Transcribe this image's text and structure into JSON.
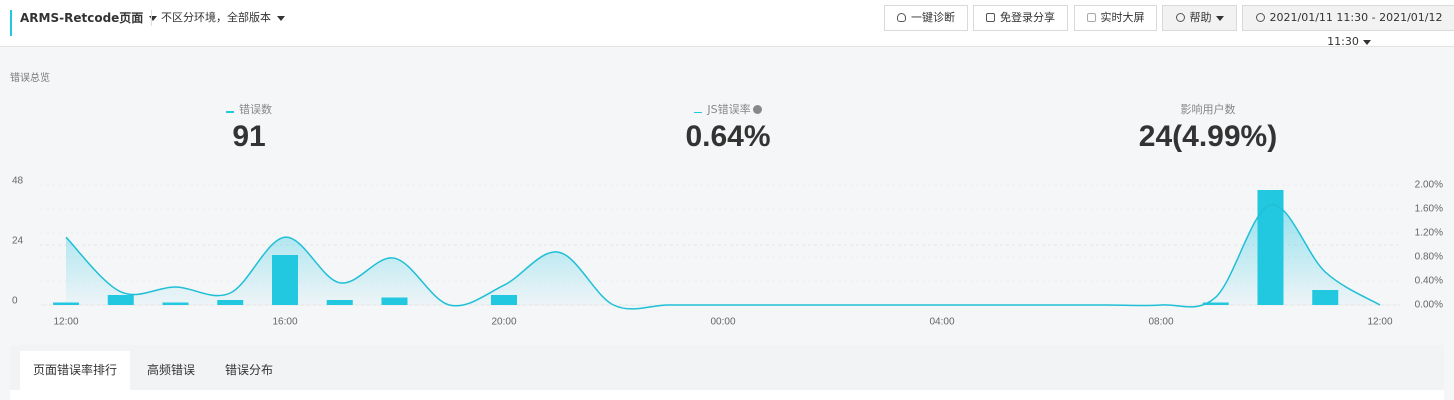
{
  "header": {
    "title": "ARMS-Retcode页面",
    "filter": "不区分环境，全部版本",
    "buttons": [
      "一键诊断",
      "免登录分享",
      "实时大屏",
      "帮助"
    ],
    "time_range": "2021/01/11 11:30 - 2021/01/12 11:30"
  },
  "overview": {
    "title": "错误总览",
    "stats": [
      {
        "label": "错误数",
        "value": "91"
      },
      {
        "label": "JS错误率",
        "value": "0.64%"
      },
      {
        "label": "影响用户数",
        "value": "24(4.99%)"
      }
    ]
  },
  "chart_data": {
    "type": "bar",
    "categories": [
      "12:00",
      null,
      null,
      null,
      "16:00",
      null,
      null,
      null,
      "20:00",
      null,
      null,
      null,
      "00:00",
      null,
      null,
      null,
      "04:00",
      null,
      null,
      null,
      "08:00",
      null,
      null,
      null,
      "12:00"
    ],
    "series": [
      {
        "type": "bar",
        "color": "#22c7e0",
        "values": [
          1,
          4,
          1,
          2,
          20,
          2,
          3,
          0,
          4,
          0,
          0,
          0,
          0,
          0,
          0,
          0,
          0,
          0,
          0,
          0,
          0,
          1,
          46,
          6,
          0
        ]
      },
      {
        "type": "line",
        "axis": "y2",
        "color": "#1fbfd6",
        "values": [
          1.13,
          0.22,
          0.3,
          0.2,
          1.13,
          0.37,
          0.78,
          0,
          0.33,
          0.88,
          0,
          0,
          0,
          0,
          0,
          0,
          0,
          0,
          0,
          0,
          0,
          0.13,
          1.67,
          0.55,
          0
        ]
      }
    ],
    "ylim": [
      0,
      48
    ],
    "yticks": [
      0,
      24,
      48
    ],
    "y2lim": [
      0,
      2
    ],
    "y2ticks": [
      {
        "value": 0,
        "label": "0.00%"
      },
      {
        "value": 0.4,
        "label": "0.40%"
      },
      {
        "value": 0.8,
        "label": "0.80%"
      },
      {
        "value": 1.2,
        "label": "1.20%"
      },
      {
        "value": 1.6,
        "label": "1.60%"
      },
      {
        "value": 2,
        "label": "2.00%"
      }
    ],
    "grid": true
  },
  "tabs": [
    "页面错误率排行",
    "高频错误",
    "错误分布"
  ]
}
